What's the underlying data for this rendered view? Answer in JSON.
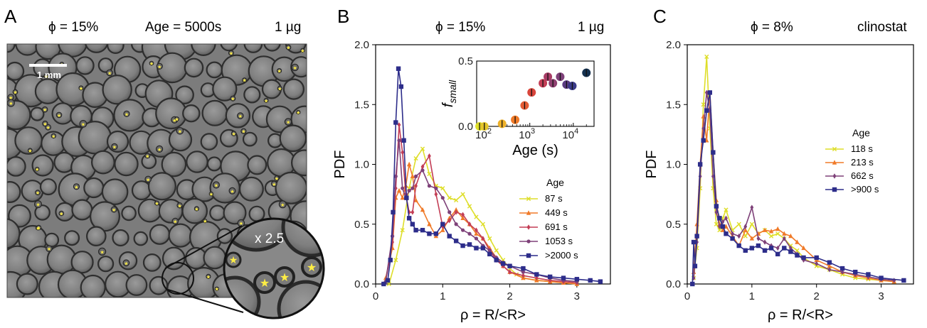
{
  "panel_a": {
    "letter": "A",
    "header": {
      "phi": "ϕ = 15%",
      "age": "Age = 5000s",
      "mass": "1 µg"
    },
    "scale_bar": "1 mm",
    "zoom": "x 2.5"
  },
  "panel_b": {
    "letter": "B",
    "header": {
      "phi": "ϕ = 15%",
      "mass": "1 µg"
    }
  },
  "panel_c": {
    "letter": "C",
    "header": {
      "phi": "ϕ = 8%",
      "cond": "clinostat"
    }
  },
  "colors": {
    "yellow": "#dede29",
    "orange": "#f07a28",
    "red": "#c33d55",
    "purple": "#7e4179",
    "navy": "#2d2d8a",
    "frame": "#000000"
  },
  "chart_data": [
    {
      "id": "B-main",
      "type": "line",
      "title": "",
      "xlabel": "ρ = R/<R>",
      "ylabel": "PDF",
      "xlim": [
        0,
        3.5
      ],
      "ylim": [
        0,
        2.0
      ],
      "xticks": [
        0,
        1,
        2,
        3
      ],
      "yticks": [
        0.0,
        0.5,
        1.0,
        1.5,
        2.0
      ],
      "legend": {
        "title": "Age",
        "position": "center-right"
      },
      "series": [
        {
          "name": "87 s",
          "color": "#dede29",
          "marker": "x",
          "x": [
            0.2,
            0.3,
            0.4,
            0.5,
            0.6,
            0.7,
            0.8,
            0.9,
            1.0,
            1.1,
            1.2,
            1.3,
            1.4,
            1.5,
            1.6,
            1.7,
            1.8,
            1.9,
            2.0,
            2.1,
            2.2,
            2.4,
            2.6,
            2.8,
            3.0
          ],
          "y": [
            0.0,
            0.2,
            0.45,
            0.8,
            1.05,
            1.13,
            0.92,
            0.82,
            0.8,
            0.72,
            0.7,
            0.75,
            0.65,
            0.56,
            0.5,
            0.38,
            0.28,
            0.2,
            0.13,
            0.08,
            0.05,
            0.03,
            0.02,
            0.01,
            0.0
          ]
        },
        {
          "name": "449 s",
          "color": "#f07a28",
          "marker": "triangle",
          "x": [
            0.15,
            0.25,
            0.3,
            0.35,
            0.4,
            0.45,
            0.5,
            0.55,
            0.6,
            0.7,
            0.8,
            0.9,
            1.0,
            1.1,
            1.2,
            1.3,
            1.4,
            1.5,
            1.6,
            1.7,
            1.8,
            1.9,
            2.0,
            2.2,
            2.4,
            2.6,
            2.8,
            3.0
          ],
          "y": [
            0.05,
            0.3,
            0.72,
            0.78,
            0.72,
            0.82,
            1.0,
            0.9,
            0.7,
            0.62,
            0.5,
            0.4,
            0.45,
            0.55,
            0.62,
            0.55,
            0.5,
            0.42,
            0.38,
            0.3,
            0.22,
            0.15,
            0.1,
            0.05,
            0.03,
            0.02,
            0.01,
            0.0
          ]
        },
        {
          "name": "691 s",
          "color": "#c33d55",
          "marker": "diamond",
          "x": [
            0.15,
            0.25,
            0.3,
            0.35,
            0.4,
            0.45,
            0.5,
            0.55,
            0.6,
            0.7,
            0.8,
            0.9,
            1.0,
            1.1,
            1.2,
            1.3,
            1.4,
            1.5,
            1.6,
            1.7,
            1.8,
            1.9,
            2.0,
            2.2,
            2.4,
            2.6,
            2.8,
            3.0
          ],
          "y": [
            0.02,
            0.35,
            0.8,
            1.33,
            1.1,
            0.75,
            0.6,
            0.6,
            0.82,
            0.98,
            1.07,
            0.75,
            0.48,
            0.53,
            0.6,
            0.58,
            0.5,
            0.45,
            0.38,
            0.28,
            0.2,
            0.15,
            0.1,
            0.07,
            0.05,
            0.03,
            0.02,
            0.01
          ]
        },
        {
          "name": "1053 s",
          "color": "#7e4179",
          "marker": "circle",
          "x": [
            0.15,
            0.25,
            0.3,
            0.35,
            0.4,
            0.45,
            0.5,
            0.55,
            0.6,
            0.7,
            0.8,
            0.9,
            1.0,
            1.1,
            1.2,
            1.3,
            1.4,
            1.5,
            1.6,
            1.7,
            1.8,
            1.9,
            2.0,
            2.2,
            2.4,
            2.6,
            2.8,
            3.0
          ],
          "y": [
            0.02,
            0.4,
            0.9,
            1.2,
            0.8,
            0.72,
            0.78,
            0.8,
            0.9,
            0.95,
            0.82,
            0.8,
            0.72,
            0.6,
            0.5,
            0.45,
            0.42,
            0.38,
            0.32,
            0.28,
            0.22,
            0.18,
            0.15,
            0.1,
            0.08,
            0.05,
            0.03,
            0.02
          ]
        },
        {
          "name": ">2000 s",
          "color": "#2d2d8a",
          "marker": "square",
          "x": [
            0.12,
            0.18,
            0.22,
            0.26,
            0.3,
            0.34,
            0.38,
            0.42,
            0.46,
            0.5,
            0.55,
            0.6,
            0.7,
            0.8,
            0.9,
            1.0,
            1.1,
            1.2,
            1.3,
            1.4,
            1.5,
            1.6,
            1.7,
            1.8,
            1.9,
            2.0,
            2.2,
            2.4,
            2.6,
            2.8,
            3.0,
            3.2,
            3.35
          ],
          "y": [
            0.0,
            0.03,
            0.2,
            0.6,
            1.35,
            1.8,
            1.65,
            1.2,
            0.72,
            0.55,
            0.5,
            0.45,
            0.45,
            0.42,
            0.42,
            0.5,
            0.4,
            0.36,
            0.32,
            0.33,
            0.3,
            0.3,
            0.25,
            0.2,
            0.17,
            0.15,
            0.13,
            0.08,
            0.06,
            0.05,
            0.04,
            0.03,
            0.02
          ]
        }
      ]
    },
    {
      "id": "B-inset",
      "type": "scatter",
      "xlabel": "Age (s)",
      "ylabel_base": "f",
      "ylabel_sub": "small",
      "xscale": "log",
      "xlim": [
        60,
        30000
      ],
      "ylim": [
        0,
        0.5
      ],
      "xticks": [
        {
          "value": 100,
          "label": "10",
          "exp": "2"
        },
        {
          "value": 1000,
          "label": "10",
          "exp": "3"
        },
        {
          "value": 10000,
          "label": "10",
          "exp": "4"
        }
      ],
      "yticks": [
        0.0,
        0.5
      ],
      "points": [
        {
          "x": 70,
          "y": 0.0,
          "color": "#dede29"
        },
        {
          "x": 90,
          "y": 0.0,
          "color": "#e3c52c"
        },
        {
          "x": 230,
          "y": 0.02,
          "color": "#edb028"
        },
        {
          "x": 460,
          "y": 0.05,
          "color": "#f07a28"
        },
        {
          "x": 760,
          "y": 0.16,
          "color": "#e55c34"
        },
        {
          "x": 1100,
          "y": 0.26,
          "color": "#d9453b"
        },
        {
          "x": 2000,
          "y": 0.33,
          "color": "#c33d55"
        },
        {
          "x": 2600,
          "y": 0.38,
          "color": "#a83d66"
        },
        {
          "x": 3400,
          "y": 0.33,
          "color": "#8e4070"
        },
        {
          "x": 5000,
          "y": 0.38,
          "color": "#7e4179"
        },
        {
          "x": 7000,
          "y": 0.32,
          "color": "#5a3a80"
        },
        {
          "x": 9500,
          "y": 0.31,
          "color": "#3a3a88"
        },
        {
          "x": 20000,
          "y": 0.41,
          "color": "#14304f"
        }
      ]
    },
    {
      "id": "C-main",
      "type": "line",
      "title": "",
      "xlabel": "ρ = R/<R>",
      "ylabel": "PDF",
      "xlim": [
        0,
        3.5
      ],
      "ylim": [
        0,
        2.0
      ],
      "xticks": [
        0,
        1,
        2,
        3
      ],
      "yticks": [
        0.0,
        0.5,
        1.0,
        1.5,
        2.0
      ],
      "legend": {
        "title": "Age",
        "position": "center-right"
      },
      "series": [
        {
          "name": "118 s",
          "color": "#dede29",
          "marker": "x",
          "x": [
            0.1,
            0.15,
            0.2,
            0.25,
            0.3,
            0.35,
            0.4,
            0.45,
            0.5,
            0.55,
            0.6,
            0.7,
            0.8,
            0.9,
            1.0,
            1.1,
            1.2,
            1.3,
            1.4,
            1.5,
            1.6,
            1.7,
            1.8,
            2.0,
            2.2,
            2.4,
            2.6,
            2.8,
            3.0,
            3.2
          ],
          "y": [
            0.05,
            0.3,
            0.8,
            1.5,
            1.9,
            1.3,
            0.8,
            0.5,
            0.45,
            0.55,
            0.62,
            0.45,
            0.5,
            0.4,
            0.5,
            0.42,
            0.45,
            0.4,
            0.42,
            0.38,
            0.32,
            0.28,
            0.22,
            0.15,
            0.12,
            0.08,
            0.05,
            0.04,
            0.03,
            0.02
          ]
        },
        {
          "name": "213 s",
          "color": "#f07a28",
          "marker": "triangle",
          "x": [
            0.1,
            0.15,
            0.2,
            0.25,
            0.3,
            0.35,
            0.4,
            0.45,
            0.5,
            0.55,
            0.6,
            0.7,
            0.8,
            0.9,
            1.0,
            1.1,
            1.2,
            1.3,
            1.4,
            1.5,
            1.6,
            1.7,
            1.8,
            2.0,
            2.2,
            2.4,
            2.6,
            2.8,
            3.0,
            3.2
          ],
          "y": [
            0.1,
            0.5,
            1.0,
            1.4,
            1.2,
            1.6,
            1.1,
            0.7,
            0.5,
            0.45,
            0.48,
            0.4,
            0.32,
            0.45,
            0.38,
            0.42,
            0.45,
            0.44,
            0.46,
            0.42,
            0.4,
            0.35,
            0.3,
            0.2,
            0.15,
            0.1,
            0.07,
            0.05,
            0.03,
            0.02
          ]
        },
        {
          "name": "662 s",
          "color": "#7e4179",
          "marker": "diamond",
          "x": [
            0.1,
            0.15,
            0.2,
            0.25,
            0.3,
            0.35,
            0.4,
            0.45,
            0.5,
            0.55,
            0.6,
            0.7,
            0.8,
            0.9,
            1.0,
            1.1,
            1.2,
            1.3,
            1.4,
            1.5,
            1.6,
            1.7,
            1.8,
            2.0,
            2.2,
            2.4,
            2.6,
            2.8,
            3.0,
            3.2
          ],
          "y": [
            0.05,
            0.35,
            0.9,
            1.3,
            1.6,
            1.45,
            0.9,
            0.6,
            0.48,
            0.52,
            0.55,
            0.42,
            0.4,
            0.48,
            0.64,
            0.38,
            0.35,
            0.32,
            0.3,
            0.38,
            0.3,
            0.25,
            0.2,
            0.17,
            0.12,
            0.1,
            0.08,
            0.06,
            0.04,
            0.03
          ]
        },
        {
          "name": ">900 s",
          "color": "#2d2d8a",
          "marker": "square",
          "x": [
            0.08,
            0.1,
            0.12,
            0.15,
            0.2,
            0.25,
            0.3,
            0.35,
            0.4,
            0.45,
            0.5,
            0.55,
            0.6,
            0.7,
            0.8,
            0.9,
            1.0,
            1.1,
            1.2,
            1.3,
            1.4,
            1.5,
            1.6,
            1.7,
            1.8,
            2.0,
            2.2,
            2.4,
            2.6,
            2.8,
            3.0,
            3.35
          ],
          "y": [
            0.0,
            0.35,
            0.15,
            0.4,
            1.0,
            1.2,
            1.45,
            1.6,
            1.1,
            0.65,
            0.55,
            0.48,
            0.42,
            0.38,
            0.32,
            0.28,
            0.3,
            0.32,
            0.28,
            0.3,
            0.25,
            0.3,
            0.27,
            0.24,
            0.22,
            0.22,
            0.18,
            0.13,
            0.1,
            0.08,
            0.05,
            0.03
          ]
        }
      ]
    }
  ]
}
